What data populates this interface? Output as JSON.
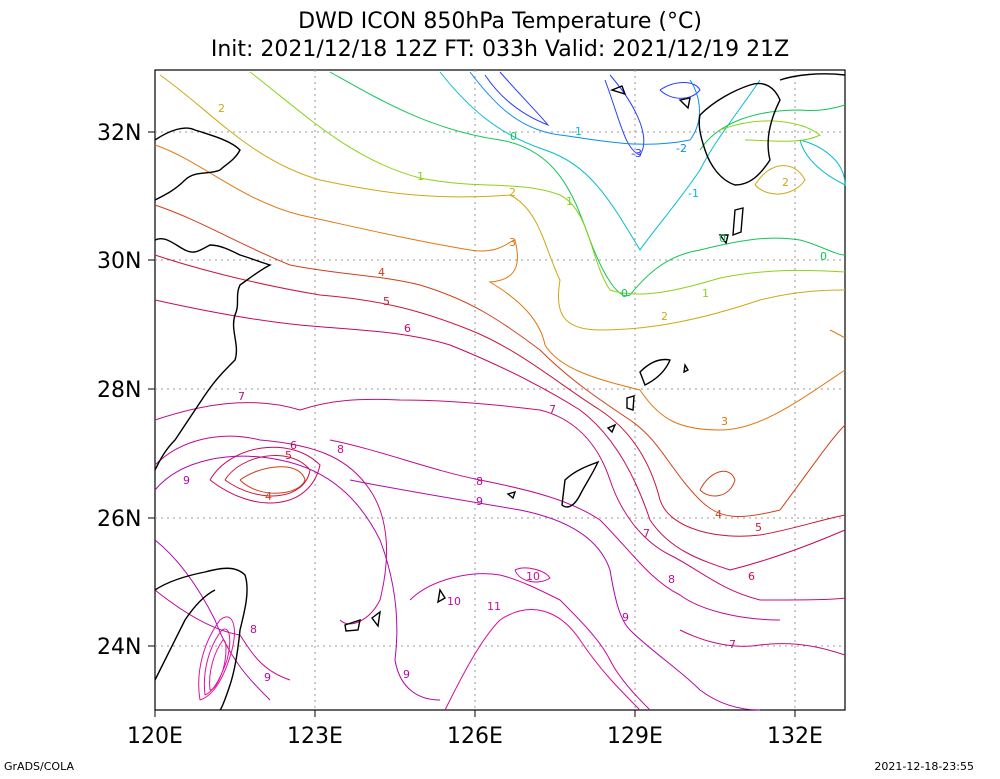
{
  "title": {
    "line1": "DWD ICON 850hPa Temperature (°C)",
    "line2": "Init: 2021/12/18 12Z  FT: 033h  Valid: 2021/12/19 21Z"
  },
  "axes": {
    "lat_labels": [
      "32N",
      "30N",
      "28N",
      "26N",
      "24N"
    ],
    "lon_labels": [
      "120E",
      "123E",
      "126E",
      "129E",
      "132E"
    ]
  },
  "footer": {
    "left": "GrADS/COLA",
    "right": "2021-12-18-23:55"
  },
  "contour_labels": [
    {
      "text": "-3",
      "color": "#2a3cff"
    },
    {
      "text": "-2",
      "color": "#0a8cf0"
    },
    {
      "text": "-1",
      "color": "#00bcd0"
    },
    {
      "text": "0",
      "color": "#12c45a"
    },
    {
      "text": "1",
      "color": "#8cd218"
    },
    {
      "text": "2",
      "color": "#d0a814"
    },
    {
      "text": "3",
      "color": "#e07810"
    },
    {
      "text": "4",
      "color": "#d04018"
    },
    {
      "text": "5",
      "color": "#c8183c"
    },
    {
      "text": "6",
      "color": "#c80860"
    },
    {
      "text": "7",
      "color": "#c0107a"
    },
    {
      "text": "8",
      "color": "#c00c94"
    },
    {
      "text": "9",
      "color": "#b008a8"
    },
    {
      "text": "10",
      "color": "#c80aa0"
    },
    {
      "text": "11",
      "color": "#d80c98"
    }
  ]
}
